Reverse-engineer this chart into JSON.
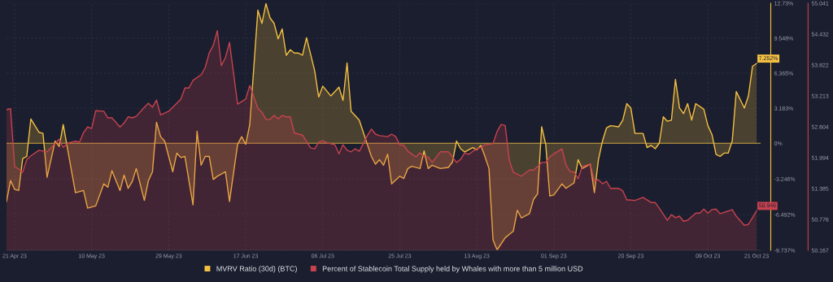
{
  "chart_data": {
    "type": "area",
    "xlim": [
      "2023-04-19",
      "2023-10-22"
    ],
    "xticks": [
      {
        "value": "2023-04-21",
        "label": "21 Apr 23"
      },
      {
        "value": "2023-05-10",
        "label": "10 May 23"
      },
      {
        "value": "2023-05-29",
        "label": "29 May 23"
      },
      {
        "value": "2023-06-17",
        "label": "17 Jun 23"
      },
      {
        "value": "2023-07-06",
        "label": "06 Jul 23"
      },
      {
        "value": "2023-07-25",
        "label": "25 Jul 23"
      },
      {
        "value": "2023-08-13",
        "label": "13 Aug 23"
      },
      {
        "value": "2023-09-01",
        "label": "01 Sep 23"
      },
      {
        "value": "2023-09-20",
        "label": "20 Sep 23"
      },
      {
        "value": "2023-10-09",
        "label": "09 Oct 23"
      },
      {
        "value": "2023-10-21",
        "label": "21 Oct 23"
      }
    ],
    "ylim": [
      -9.737,
      12.73
    ],
    "yticks": [
      {
        "value": 12.73,
        "label": "12.73%"
      },
      {
        "value": 9.548,
        "label": "9.548%"
      },
      {
        "value": 6.365,
        "label": "6.365%"
      },
      {
        "value": 3.183,
        "label": "3.183%"
      },
      {
        "value": 0,
        "label": "0%"
      },
      {
        "value": -3.246,
        "label": "-3.246%"
      },
      {
        "value": -6.492,
        "label": "-6.492%"
      },
      {
        "value": -9.737,
        "label": "-9.737%"
      }
    ],
    "y2lim": [
      50.167,
      55.041
    ],
    "y2ticks": [
      55.041,
      54.432,
      53.822,
      53.213,
      52.604,
      51.994,
      51.385,
      50.776,
      50.167
    ],
    "grid": true,
    "legend": "bottom",
    "ref_lines": [
      {
        "axis": "y",
        "value": 0,
        "color": "#f4c042"
      }
    ],
    "series": [
      {
        "name": "MVRV Ratio (30d) (BTC)",
        "color": "#f4c042",
        "x": [
          "2023-04-19",
          "2023-04-20",
          "2023-04-21",
          "2023-04-22",
          "2023-04-23",
          "2023-04-24",
          "2023-04-25",
          "2023-04-27",
          "2023-04-28",
          "2023-04-29",
          "2023-05-01",
          "2023-05-02",
          "2023-05-03",
          "2023-05-04",
          "2023-05-06",
          "2023-05-08",
          "2023-05-09",
          "2023-05-11",
          "2023-05-13",
          "2023-05-14",
          "2023-05-15",
          "2023-05-17",
          "2023-05-18",
          "2023-05-19",
          "2023-05-20",
          "2023-05-21",
          "2023-05-23",
          "2023-05-24",
          "2023-05-25",
          "2023-05-26",
          "2023-05-27",
          "2023-05-28",
          "2023-05-30",
          "2023-05-31",
          "2023-06-01",
          "2023-06-02",
          "2023-06-04",
          "2023-06-05",
          "2023-06-06",
          "2023-06-07",
          "2023-06-08",
          "2023-06-09",
          "2023-06-10",
          "2023-06-12",
          "2023-06-13",
          "2023-06-15",
          "2023-06-16",
          "2023-06-17",
          "2023-06-18",
          "2023-06-20",
          "2023-06-21",
          "2023-06-22",
          "2023-06-23",
          "2023-06-24",
          "2023-06-25",
          "2023-06-26",
          "2023-06-27",
          "2023-06-28",
          "2023-06-29",
          "2023-06-30",
          "2023-07-01",
          "2023-07-02",
          "2023-07-04",
          "2023-07-05",
          "2023-07-06",
          "2023-07-08",
          "2023-07-10",
          "2023-07-11",
          "2023-07-12",
          "2023-07-13",
          "2023-07-15",
          "2023-07-16",
          "2023-07-17",
          "2023-07-18",
          "2023-07-19",
          "2023-07-20",
          "2023-07-21",
          "2023-07-22",
          "2023-07-23",
          "2023-07-25",
          "2023-07-26",
          "2023-07-27",
          "2023-07-28",
          "2023-07-30",
          "2023-07-31",
          "2023-08-01",
          "2023-08-02",
          "2023-08-04",
          "2023-08-06",
          "2023-08-07",
          "2023-08-08",
          "2023-08-09",
          "2023-08-10",
          "2023-08-12",
          "2023-08-13",
          "2023-08-14",
          "2023-08-15",
          "2023-08-16",
          "2023-08-17",
          "2023-08-18",
          "2023-08-20",
          "2023-08-21",
          "2023-08-22",
          "2023-08-23",
          "2023-08-24",
          "2023-08-26",
          "2023-08-27",
          "2023-08-28",
          "2023-08-29",
          "2023-08-30",
          "2023-08-31",
          "2023-09-01",
          "2023-09-03",
          "2023-09-04",
          "2023-09-06",
          "2023-09-07",
          "2023-09-08",
          "2023-09-10",
          "2023-09-11",
          "2023-09-12",
          "2023-09-13",
          "2023-09-14",
          "2023-09-15",
          "2023-09-17",
          "2023-09-18",
          "2023-09-19",
          "2023-09-20",
          "2023-09-21",
          "2023-09-23",
          "2023-09-24",
          "2023-09-25",
          "2023-09-26",
          "2023-09-27",
          "2023-09-28",
          "2023-09-29",
          "2023-09-30",
          "2023-10-01",
          "2023-10-02",
          "2023-10-03",
          "2023-10-04",
          "2023-10-05",
          "2023-10-06",
          "2023-10-08",
          "2023-10-09",
          "2023-10-10",
          "2023-10-11",
          "2023-10-12",
          "2023-10-13",
          "2023-10-14",
          "2023-10-15",
          "2023-10-16",
          "2023-10-18",
          "2023-10-19",
          "2023-10-20",
          "2023-10-21"
        ],
        "values": [
          -5.3,
          -3.4,
          -4.2,
          -4.3,
          -1.4,
          -1.2,
          2.2,
          1.0,
          0.9,
          -3.1,
          0.2,
          -0.3,
          1.7,
          -0.4,
          -4.5,
          -4.3,
          -5.9,
          -5.7,
          -3.7,
          -4.0,
          -2.5,
          -4.3,
          -2.9,
          -4.1,
          -3.5,
          -2.3,
          -5.2,
          -3.4,
          -2.6,
          1.9,
          0.6,
          0.2,
          -2.6,
          -0.9,
          -1.3,
          -1.2,
          -5.6,
          1.1,
          -2.0,
          -1.2,
          -1.2,
          -3.3,
          -3.0,
          -2.6,
          -5.3,
          -0.1,
          0.6,
          -0.1,
          1.7,
          12.1,
          10.9,
          12.7,
          11.4,
          10.9,
          9.5,
          10.4,
          8.0,
          8.5,
          8.2,
          8.2,
          8.0,
          9.6,
          6.6,
          4.2,
          5.2,
          4.3,
          5.1,
          3.9,
          7.3,
          2.9,
          2.1,
          1.0,
          -0.1,
          -1.2,
          -1.9,
          -1.5,
          -2.0,
          -1.0,
          -3.7,
          -3.0,
          -3.2,
          -2.3,
          -2.1,
          -2.3,
          -0.7,
          -2.3,
          -2.0,
          -2.3,
          -2.2,
          -1.7,
          0.2,
          -0.5,
          -0.8,
          -0.4,
          -0.6,
          -0.2,
          -1.2,
          -2.3,
          -8.8,
          -9.7,
          -8.6,
          -8.3,
          -8.0,
          -6.1,
          -6.8,
          -6.4,
          -5.1,
          -4.6,
          1.5,
          -0.1,
          -4.8,
          -4.7,
          -3.7,
          -4.1,
          -3.6,
          -1.5,
          -2.3,
          -1.9,
          -4.5,
          -1.5,
          0.2,
          1.4,
          1.6,
          1.5,
          2.1,
          3.6,
          3.2,
          0.9,
          0.9,
          -0.4,
          -0.2,
          -0.5,
          0.0,
          2.4,
          2.0,
          2.1,
          5.8,
          3.2,
          2.7,
          3.6,
          2.1,
          3.6,
          3.1,
          1.6,
          0.8,
          -1.0,
          -1.2,
          -0.9,
          -0.9,
          0.2,
          4.7,
          3.2,
          4.3,
          7.0,
          7.252
        ],
        "value_labels": [
          null,
          null,
          null,
          null,
          null,
          null,
          null,
          null,
          null,
          null,
          null,
          null,
          null,
          null,
          null,
          null,
          null,
          null,
          null,
          null,
          null,
          null,
          null,
          null,
          null,
          null,
          null,
          null,
          null,
          null,
          null,
          null,
          null,
          null,
          null,
          null,
          null,
          null,
          null,
          null,
          null,
          null,
          null,
          null,
          null,
          null,
          null,
          null,
          null,
          null,
          null,
          null,
          null,
          null,
          null,
          null,
          null,
          null,
          null,
          null,
          null,
          null,
          null,
          null,
          null,
          null,
          null,
          null,
          null,
          null,
          null,
          null,
          null,
          null,
          null,
          null,
          null,
          null,
          null,
          null,
          null,
          null,
          null,
          null,
          null,
          null,
          null,
          null,
          null,
          null,
          null,
          null,
          null,
          null,
          null,
          null,
          null,
          null,
          null,
          null,
          null,
          null,
          null,
          null,
          null,
          null,
          null,
          null,
          null,
          null,
          null,
          null,
          null,
          null,
          null,
          null,
          null,
          null,
          null,
          null,
          null,
          null,
          null,
          null,
          null,
          null,
          null,
          null,
          null,
          null,
          null,
          null,
          null,
          null,
          null,
          null,
          null,
          null,
          null,
          null,
          null,
          null,
          null,
          null,
          null,
          null,
          null,
          null,
          null,
          null,
          null,
          null,
          null,
          null,
          "7.252%"
        ]
      },
      {
        "name": "Percent of Stablecoin Total Supply held by Whales with more than 5 million USD",
        "color": "#c8424f",
        "axis": "y2",
        "x": [
          "2023-04-19",
          "2023-04-20",
          "2023-04-21",
          "2023-04-22",
          "2023-04-23",
          "2023-04-24",
          "2023-04-25",
          "2023-04-27",
          "2023-04-29",
          "2023-04-30",
          "2023-05-02",
          "2023-05-03",
          "2023-05-04",
          "2023-05-06",
          "2023-05-07",
          "2023-05-08",
          "2023-05-09",
          "2023-05-10",
          "2023-05-11",
          "2023-05-13",
          "2023-05-14",
          "2023-05-15",
          "2023-05-17",
          "2023-05-18",
          "2023-05-19",
          "2023-05-20",
          "2023-05-21",
          "2023-05-23",
          "2023-05-24",
          "2023-05-25",
          "2023-05-26",
          "2023-05-27",
          "2023-05-29",
          "2023-05-31",
          "2023-06-01",
          "2023-06-02",
          "2023-06-03",
          "2023-06-04",
          "2023-06-06",
          "2023-06-07",
          "2023-06-08",
          "2023-06-09",
          "2023-06-10",
          "2023-06-11",
          "2023-06-12",
          "2023-06-13",
          "2023-06-15",
          "2023-06-17",
          "2023-06-18",
          "2023-06-20",
          "2023-06-21",
          "2023-06-22",
          "2023-06-23",
          "2023-06-24",
          "2023-06-25",
          "2023-06-26",
          "2023-06-27",
          "2023-06-28",
          "2023-06-29",
          "2023-07-01",
          "2023-07-03",
          "2023-07-04",
          "2023-07-05",
          "2023-07-06",
          "2023-07-07",
          "2023-07-09",
          "2023-07-10",
          "2023-07-11",
          "2023-07-12",
          "2023-07-13",
          "2023-07-14",
          "2023-07-15",
          "2023-07-16",
          "2023-07-17",
          "2023-07-18",
          "2023-07-19",
          "2023-07-20",
          "2023-07-22",
          "2023-07-23",
          "2023-07-24",
          "2023-07-25",
          "2023-07-26",
          "2023-07-27",
          "2023-07-29",
          "2023-07-30",
          "2023-07-31",
          "2023-08-01",
          "2023-08-02",
          "2023-08-04",
          "2023-08-06",
          "2023-08-07",
          "2023-08-08",
          "2023-08-09",
          "2023-08-10",
          "2023-08-11",
          "2023-08-12",
          "2023-08-13",
          "2023-08-14",
          "2023-08-15",
          "2023-08-17",
          "2023-08-18",
          "2023-08-19",
          "2023-08-20",
          "2023-08-21",
          "2023-08-22",
          "2023-08-24",
          "2023-08-25",
          "2023-08-26",
          "2023-08-27",
          "2023-08-28",
          "2023-08-29",
          "2023-08-30",
          "2023-08-31",
          "2023-09-01",
          "2023-09-03",
          "2023-09-04",
          "2023-09-05",
          "2023-09-06",
          "2023-09-07",
          "2023-09-08",
          "2023-09-10",
          "2023-09-11",
          "2023-09-12",
          "2023-09-13",
          "2023-09-14",
          "2023-09-15",
          "2023-09-17",
          "2023-09-18",
          "2023-09-19",
          "2023-09-20",
          "2023-09-21",
          "2023-09-23",
          "2023-09-25",
          "2023-09-26",
          "2023-09-27",
          "2023-09-29",
          "2023-09-30",
          "2023-10-01",
          "2023-10-02",
          "2023-10-03",
          "2023-10-04",
          "2023-10-06",
          "2023-10-07",
          "2023-10-08",
          "2023-10-09",
          "2023-10-10",
          "2023-10-11",
          "2023-10-12",
          "2023-10-14",
          "2023-10-15",
          "2023-10-16",
          "2023-10-18",
          "2023-10-19",
          "2023-10-20",
          "2023-10-21"
        ],
        "values": [
          52.94,
          52.96,
          51.82,
          51.77,
          51.71,
          51.96,
          52.03,
          52.14,
          52.11,
          52.19,
          52.36,
          52.2,
          52.28,
          52.32,
          52.3,
          52.49,
          52.6,
          52.57,
          52.92,
          52.91,
          52.78,
          52.78,
          52.6,
          52.68,
          52.8,
          52.78,
          52.81,
          52.99,
          53.07,
          52.99,
          53.13,
          52.84,
          52.91,
          53.07,
          53.15,
          53.37,
          53.37,
          53.52,
          53.63,
          53.77,
          54.06,
          54.21,
          54.5,
          53.81,
          53.97,
          54.27,
          53.05,
          53.15,
          53.42,
          52.97,
          52.89,
          52.75,
          52.75,
          52.83,
          52.76,
          52.83,
          52.8,
          52.8,
          52.48,
          52.44,
          52.19,
          52.17,
          52.3,
          52.33,
          52.29,
          52.25,
          52.07,
          52.25,
          52.14,
          52.11,
          52.17,
          52.12,
          52.27,
          52.43,
          52.56,
          52.46,
          52.43,
          52.41,
          52.46,
          52.41,
          52.25,
          52.24,
          52.12,
          52.01,
          52.09,
          52.01,
          52.01,
          51.9,
          52.11,
          52.11,
          52.01,
          51.9,
          51.96,
          52.09,
          52.06,
          52.12,
          52.17,
          52.2,
          52.25,
          52.27,
          52.51,
          52.65,
          52.63,
          51.95,
          51.71,
          51.63,
          51.69,
          51.75,
          51.75,
          51.82,
          51.9,
          51.9,
          52.01,
          52.07,
          52.17,
          51.85,
          51.72,
          51.71,
          51.58,
          51.82,
          51.87,
          51.53,
          51.56,
          51.48,
          51.53,
          51.39,
          51.39,
          51.34,
          51.16,
          51.16,
          51.15,
          51.21,
          51.11,
          51.11,
          51.0,
          50.76,
          50.87,
          50.81,
          50.84,
          50.74,
          50.76,
          50.9,
          50.9,
          50.98,
          50.9,
          50.97,
          50.98,
          50.89,
          50.94,
          50.97,
          50.84,
          50.66,
          50.68,
          50.81,
          50.946
        ],
        "value_labels": [
          null,
          null,
          null,
          null,
          null,
          null,
          null,
          null,
          null,
          null,
          null,
          null,
          null,
          null,
          null,
          null,
          null,
          null,
          null,
          null,
          null,
          null,
          null,
          null,
          null,
          null,
          null,
          null,
          null,
          null,
          null,
          null,
          null,
          null,
          null,
          null,
          null,
          null,
          null,
          null,
          null,
          null,
          null,
          null,
          null,
          null,
          null,
          null,
          null,
          null,
          null,
          null,
          null,
          null,
          null,
          null,
          null,
          null,
          null,
          null,
          null,
          null,
          null,
          null,
          null,
          null,
          null,
          null,
          null,
          null,
          null,
          null,
          null,
          null,
          null,
          null,
          null,
          null,
          null,
          null,
          null,
          null,
          null,
          null,
          null,
          null,
          null,
          null,
          null,
          null,
          null,
          null,
          null,
          null,
          null,
          null,
          null,
          null,
          null,
          null,
          null,
          null,
          null,
          null,
          null,
          null,
          null,
          null,
          null,
          null,
          null,
          null,
          null,
          null,
          null,
          null,
          null,
          null,
          null,
          null,
          null,
          null,
          null,
          null,
          null,
          null,
          null,
          null,
          null,
          null,
          null,
          null,
          null,
          null,
          null,
          null,
          null,
          null,
          null,
          null,
          null,
          null,
          null,
          null,
          null,
          null,
          null,
          null,
          null,
          null,
          null,
          null,
          null,
          null,
          "50.946"
        ]
      }
    ]
  }
}
